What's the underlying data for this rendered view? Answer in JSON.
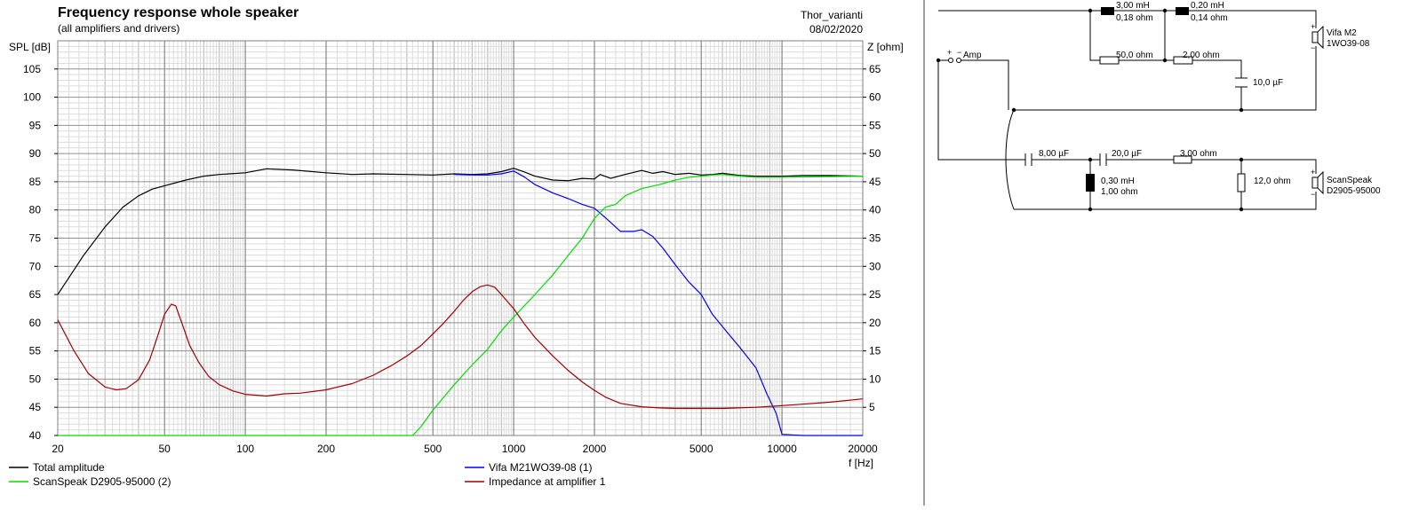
{
  "chart_data": {
    "type": "line",
    "title": "Frequency response whole speaker",
    "subtitle": "(all amplifiers and drivers)",
    "project": "Thor_varianti",
    "date": "08/02/2020",
    "xlabel": "f [Hz]",
    "ylabel": "SPL [dB]",
    "y2label": "Z [ohm]",
    "x_scale": "log",
    "xlim": [
      20,
      20000
    ],
    "ylim": [
      40,
      110
    ],
    "y2lim": [
      0,
      70
    ],
    "x_ticks": [
      20,
      50,
      100,
      200,
      500,
      1000,
      2000,
      5000,
      10000,
      20000
    ],
    "y_ticks": [
      40,
      45,
      50,
      55,
      60,
      65,
      70,
      75,
      80,
      85,
      90,
      95,
      100,
      105
    ],
    "y2_ticks": [
      5,
      10,
      15,
      20,
      25,
      30,
      35,
      40,
      45,
      50,
      55,
      60,
      65
    ],
    "grid": true,
    "legend_position": "bottom",
    "series": [
      {
        "name": "Total amplitude",
        "color": "#000000",
        "axis": "left",
        "x": [
          20,
          25,
          30,
          35,
          40,
          45,
          50,
          60,
          70,
          80,
          100,
          120,
          150,
          200,
          250,
          300,
          400,
          500,
          600,
          700,
          800,
          900,
          1000,
          1100,
          1200,
          1400,
          1600,
          1800,
          2000,
          2100,
          2300,
          2600,
          3000,
          3300,
          3600,
          4000,
          4500,
          5000,
          5500,
          6000,
          7000,
          8000,
          10000,
          12000,
          15000,
          20000
        ],
        "y": [
          65,
          72,
          77,
          80.5,
          82.5,
          83.7,
          84.3,
          85.3,
          86,
          86.3,
          86.6,
          87.3,
          87.1,
          86.6,
          86.3,
          86.4,
          86.3,
          86.2,
          86.4,
          86.3,
          86.4,
          86.8,
          87.4,
          86.7,
          86,
          85.3,
          85.2,
          85.6,
          85.5,
          86.3,
          85.6,
          86.3,
          87,
          86.5,
          86.8,
          86.3,
          86.5,
          86.2,
          86.3,
          86.5,
          86.1,
          86,
          86,
          86.1,
          86.1,
          86
        ]
      },
      {
        "name": "Vifa M21WO39-08 (1)",
        "color": "#0000ff",
        "axis": "left",
        "x": [
          600,
          700,
          800,
          900,
          1000,
          1100,
          1200,
          1400,
          1600,
          1800,
          2000,
          2200,
          2500,
          2800,
          3000,
          3300,
          3600,
          4000,
          4500,
          5000,
          5500,
          6000,
          7000,
          8000,
          8800,
          9500,
          10000,
          12000,
          15000,
          20000
        ],
        "y": [
          86.3,
          86.2,
          86.2,
          86.4,
          86.9,
          85.8,
          84.5,
          83,
          82,
          81,
          80.3,
          78.6,
          76.2,
          76.2,
          76.5,
          75.3,
          73.2,
          70.3,
          67.2,
          65,
          61.5,
          59.3,
          55.5,
          52,
          47.3,
          44,
          40.2,
          40,
          40,
          40
        ]
      },
      {
        "name": "ScanSpeak D2905-95000 (2)",
        "color": "#00dd00",
        "axis": "left",
        "x": [
          20,
          100,
          200,
          300,
          420,
          450,
          500,
          600,
          700,
          800,
          900,
          1000,
          1200,
          1400,
          1600,
          1800,
          2000,
          2200,
          2400,
          2600,
          3000,
          3500,
          4000,
          4500,
          5000,
          5500,
          6000,
          7000,
          8000,
          10000,
          20000
        ],
        "y": [
          40,
          40,
          40,
          40,
          40,
          41.5,
          44.5,
          49,
          52.5,
          55.3,
          58.6,
          61,
          65,
          68.5,
          72,
          75,
          78.5,
          80.5,
          81,
          82.5,
          83.8,
          84.5,
          85.3,
          85.8,
          86,
          86.2,
          86.3,
          86,
          85.8,
          85.8,
          86
        ]
      },
      {
        "name": "Impedance at amplifier 1",
        "color": "#a00000",
        "axis": "right",
        "x": [
          20,
          23,
          26,
          30,
          33,
          36,
          40,
          44,
          47,
          50,
          53,
          55,
          58,
          62,
          67,
          73,
          80,
          90,
          100,
          120,
          140,
          160,
          200,
          250,
          300,
          350,
          400,
          450,
          500,
          550,
          600,
          650,
          700,
          750,
          800,
          850,
          900,
          1000,
          1100,
          1200,
          1400,
          1600,
          1800,
          2000,
          2200,
          2500,
          3000,
          3500,
          4000,
          5000,
          6000,
          8000,
          10000,
          15000,
          20000
        ],
        "y": [
          20.5,
          15,
          11,
          8.6,
          8.1,
          8.3,
          9.9,
          13.4,
          17.5,
          21.5,
          23.3,
          23,
          20,
          16,
          13,
          10.5,
          9,
          7.9,
          7.3,
          7,
          7.4,
          7.5,
          8.1,
          9.2,
          10.7,
          12.4,
          14.1,
          15.9,
          18,
          20,
          22,
          24,
          25.5,
          26.4,
          26.7,
          26.3,
          25,
          22.5,
          19.7,
          17.4,
          14.1,
          11.5,
          9.5,
          8,
          6.8,
          5.7,
          5.1,
          4.9,
          4.8,
          4.8,
          4.8,
          5,
          5.3,
          5.9,
          6.5
        ]
      }
    ]
  },
  "schematic": {
    "amp_label": "Amp",
    "amp_plus": "+",
    "amp_minus": "−",
    "components": [
      {
        "id": "l1",
        "kind": "inductor",
        "line1": "3,00 mH",
        "line2": "0,18 ohm"
      },
      {
        "id": "l2",
        "kind": "inductor",
        "line1": "0,20 mH",
        "line2": "0,14 ohm"
      },
      {
        "id": "r1",
        "kind": "resistor",
        "line1": "50,0 ohm"
      },
      {
        "id": "r2",
        "kind": "resistor",
        "line1": "2,00 ohm"
      },
      {
        "id": "c1",
        "kind": "capacitor",
        "line1": "10,0 µF"
      },
      {
        "id": "c2",
        "kind": "capacitor",
        "line1": "8,00 µF"
      },
      {
        "id": "c3",
        "kind": "capacitor",
        "line1": "20,0 µF"
      },
      {
        "id": "r3",
        "kind": "resistor",
        "line1": "3,00 ohm"
      },
      {
        "id": "l3",
        "kind": "inductor",
        "line1": "0,30 mH",
        "line2": "1,00 ohm"
      },
      {
        "id": "r4",
        "kind": "resistor",
        "line1": "12,0 ohm"
      }
    ],
    "drivers": [
      {
        "id": "woofer",
        "line1": "Vifa M2",
        "line2": "1WO39-08"
      },
      {
        "id": "tweeter",
        "line1": "ScanSpeak",
        "line2": "D2905-95000"
      }
    ]
  }
}
